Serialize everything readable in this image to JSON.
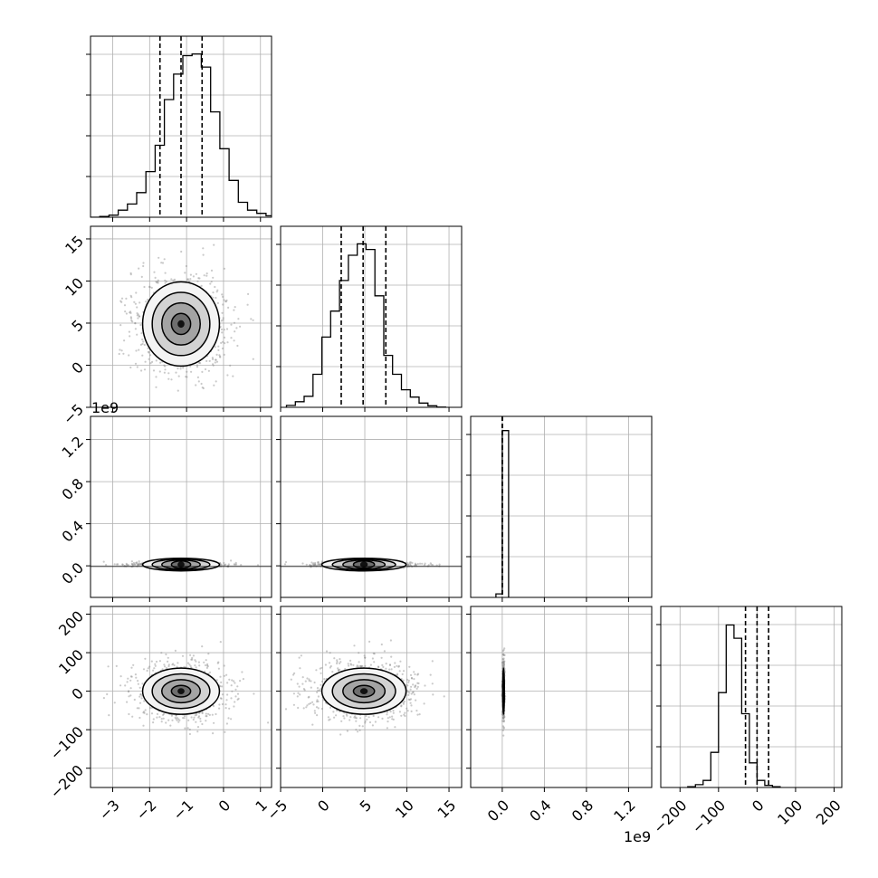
{
  "chart_data": {
    "type": "corner",
    "parameters": 4,
    "grid": true,
    "quantile_lines": "dashed",
    "offset_labels": [
      {
        "variable": 2,
        "text": "1e9",
        "placement": "y-axis-top"
      },
      {
        "variable": 2,
        "text": "1e9",
        "placement": "x-axis-bottom"
      }
    ],
    "axes": [
      {
        "range": [
          -3.6,
          1.3
        ],
        "ticks": [
          -3,
          -2,
          -1,
          0,
          1
        ],
        "tick_labels": [
          "−3",
          "−2",
          "−1",
          "0",
          "1"
        ]
      },
      {
        "range": [
          -5,
          16.5
        ],
        "ticks": [
          -5,
          0,
          5,
          10,
          15
        ],
        "tick_labels": [
          "−5",
          "0",
          "5",
          "10",
          "15"
        ]
      },
      {
        "range": [
          -0.3,
          1.42
        ],
        "ticks": [
          0.0,
          0.4,
          0.8,
          1.2
        ],
        "tick_labels": [
          "0.0",
          "0.4",
          "0.8",
          "1.2"
        ]
      },
      {
        "range": [
          -250,
          220
        ],
        "ticks": [
          -200,
          -100,
          0,
          100,
          200
        ],
        "tick_labels": [
          "−200",
          "−100",
          "0",
          "100",
          "200"
        ]
      }
    ],
    "marginals": [
      {
        "variable": 0,
        "bin_start": -3.6,
        "bin_width": 0.25,
        "ymax": 1.0,
        "counts": [
          0,
          0.004,
          0.012,
          0.04,
          0.075,
          0.14,
          0.26,
          0.41,
          0.67,
          0.815,
          0.92,
          0.93,
          0.855,
          0.6,
          0.39,
          0.21,
          0.085,
          0.04,
          0.022,
          0.008,
          0.004
        ],
        "quantiles": [
          -1.72,
          -1.15,
          -0.58
        ]
      },
      {
        "variable": 1,
        "bin_start": -4.3,
        "bin_width": 1.05,
        "ymax": 1.0,
        "counts": [
          0.011,
          0.032,
          0.063,
          0.188,
          0.4,
          0.548,
          0.722,
          0.866,
          0.931,
          0.899,
          0.635,
          0.296,
          0.188,
          0.1,
          0.058,
          0.024,
          0.009,
          0.001
        ],
        "quantiles": [
          2.2,
          4.8,
          7.5
        ]
      },
      {
        "variable": 2,
        "bin_start": -0.06,
        "bin_width": 0.06,
        "ymax": 1.0,
        "counts": [
          0.02,
          0.95
        ],
        "quantiles": [
          0.0,
          0.0,
          0.0
        ]
      },
      {
        "variable": 3,
        "bin_start": -180,
        "bin_width": 20,
        "ymax": 1.0,
        "counts": [
          0.004,
          0.016,
          0.04,
          0.2,
          0.54,
          0.925,
          0.85,
          0.42,
          0.14,
          0.04,
          0.012,
          0.004
        ],
        "quantiles": [
          -30,
          0,
          30
        ]
      }
    ],
    "joints": [
      {
        "x": 0,
        "y": 1,
        "x_center": -1.15,
        "y_center": 4.9,
        "x_sd": 0.52,
        "y_sd": 2.5,
        "n_points": 900
      },
      {
        "x": 0,
        "y": 2,
        "x_center": -1.15,
        "y_center": 0.012,
        "x_sd": 0.52,
        "y_sd": 0.004,
        "n_points": 600
      },
      {
        "x": 1,
        "y": 2,
        "x_center": 4.9,
        "y_center": 0.012,
        "x_sd": 2.5,
        "y_sd": 0.004,
        "n_points": 600
      },
      {
        "x": 0,
        "y": 3,
        "x_center": -1.15,
        "y_center": 0,
        "x_sd": 0.52,
        "y_sd": 30,
        "n_points": 900
      },
      {
        "x": 1,
        "y": 3,
        "x_center": 4.9,
        "y_center": 0,
        "x_sd": 2.5,
        "y_sd": 30,
        "n_points": 900
      },
      {
        "x": 2,
        "y": 3,
        "x_center": 0.012,
        "y_center": 0,
        "x_sd": 0.004,
        "y_sd": 30,
        "n_points": 500
      }
    ]
  }
}
